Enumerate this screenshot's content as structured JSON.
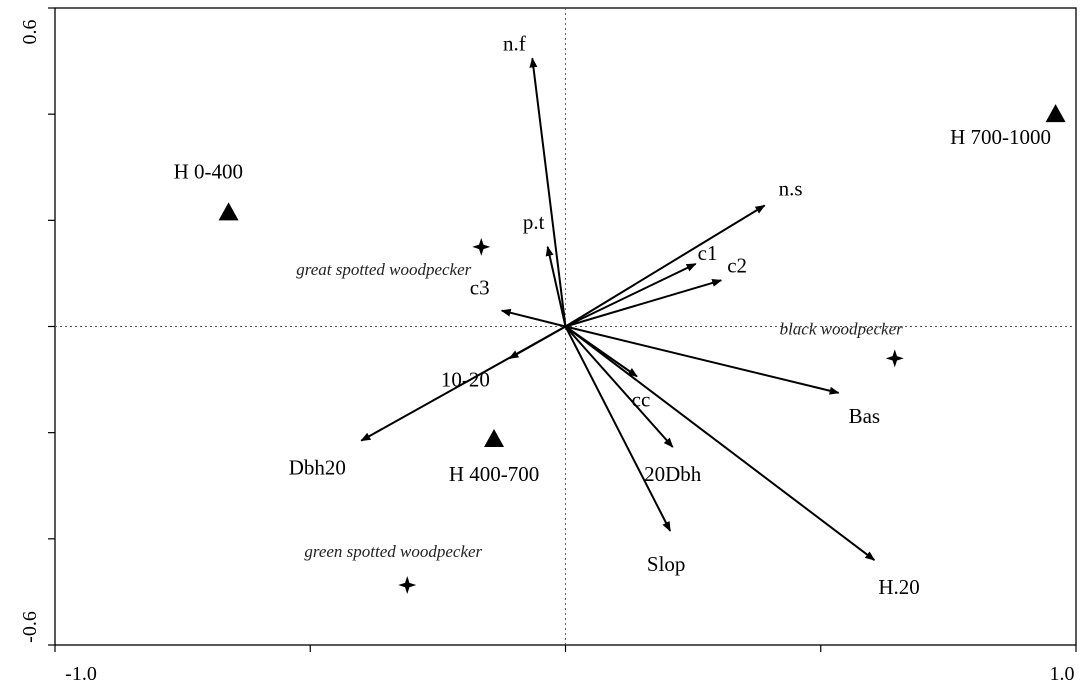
{
  "chart_data": {
    "type": "scatter",
    "subtype": "ordination-biplot",
    "xlim": [
      -1.0,
      1.0
    ],
    "ylim": [
      -0.6,
      0.6
    ],
    "x_tick_labels": [
      "-1.0",
      "1.0"
    ],
    "y_tick_labels": [
      "0.6",
      "-0.6"
    ],
    "x_ticks": [
      -1.0,
      -0.5,
      0.0,
      0.5,
      1.0
    ],
    "y_ticks": [
      -0.6,
      -0.4,
      -0.2,
      0.0,
      0.2,
      0.4,
      0.6
    ],
    "zero_lines": "dotted",
    "grid": false,
    "vectors": [
      {
        "label": "n.f",
        "x": -0.065,
        "y": 0.505
      },
      {
        "label": "n.s",
        "x": 0.39,
        "y": 0.228
      },
      {
        "label": "p.t",
        "x": -0.035,
        "y": 0.15
      },
      {
        "label": "c1",
        "x": 0.255,
        "y": 0.118
      },
      {
        "label": "c2",
        "x": 0.305,
        "y": 0.087
      },
      {
        "label": "c3",
        "x": -0.125,
        "y": 0.03
      },
      {
        "label": "10-20",
        "x": -0.11,
        "y": -0.06
      },
      {
        "label": "Dbh20",
        "x": -0.4,
        "y": -0.215
      },
      {
        "label": "cc",
        "x": 0.14,
        "y": -0.094
      },
      {
        "label": "20Dbh",
        "x": 0.21,
        "y": -0.227
      },
      {
        "label": "Slop",
        "x": 0.205,
        "y": -0.385
      },
      {
        "label": "Bas",
        "x": 0.535,
        "y": -0.125
      },
      {
        "label": "H.20",
        "x": 0.605,
        "y": -0.44
      }
    ],
    "sites": [
      {
        "label": "H 0-400",
        "x": -0.66,
        "y": 0.215
      },
      {
        "label": "H 400-700",
        "x": -0.14,
        "y": -0.212
      },
      {
        "label": "H 700-1000",
        "x": 0.96,
        "y": 0.4
      }
    ],
    "species": [
      {
        "label": "great spotted woodpecker",
        "x": -0.165,
        "y": 0.15
      },
      {
        "label": "black woodpecker",
        "x": 0.645,
        "y": -0.06
      },
      {
        "label": "green spotted woodpecker",
        "x": -0.31,
        "y": -0.487
      }
    ]
  }
}
